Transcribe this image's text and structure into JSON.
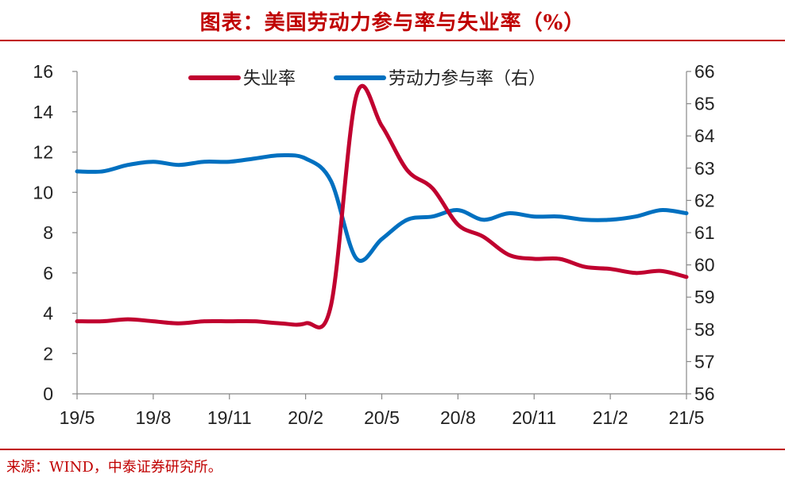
{
  "header": {
    "title": "图表：美国劳动力参与率与失业率（%）"
  },
  "footer": {
    "source": "来源：WIND，中泰证券研究所。"
  },
  "colors": {
    "brand": "#c00000",
    "unemployment": "#c0002f",
    "participation": "#0070c0"
  },
  "chart_data": {
    "type": "line",
    "title": "图表：美国劳动力参与率与失业率（%）",
    "x": [
      "19/5",
      "19/6",
      "19/7",
      "19/8",
      "19/9",
      "19/10",
      "19/11",
      "19/12",
      "20/1",
      "20/2",
      "20/3",
      "20/4",
      "20/5",
      "20/6",
      "20/7",
      "20/8",
      "20/9",
      "20/10",
      "20/11",
      "20/12",
      "21/1",
      "21/2",
      "21/3",
      "21/4",
      "21/5"
    ],
    "x_ticks": [
      "19/5",
      "19/8",
      "19/11",
      "20/2",
      "20/5",
      "20/8",
      "20/11",
      "21/2",
      "21/5"
    ],
    "y_left": {
      "ticks": [
        "0",
        "2",
        "4",
        "6",
        "8",
        "10",
        "12",
        "14",
        "16"
      ],
      "ylim": [
        0,
        16
      ]
    },
    "y_right": {
      "ticks": [
        "56",
        "57",
        "58",
        "59",
        "60",
        "61",
        "62",
        "63",
        "64",
        "65",
        "66"
      ],
      "ylim": [
        56,
        66
      ]
    },
    "series": [
      {
        "name": "失业率",
        "axis": "left",
        "values": [
          3.6,
          3.6,
          3.7,
          3.6,
          3.5,
          3.6,
          3.6,
          3.6,
          3.5,
          3.5,
          4.4,
          14.8,
          13.3,
          11.1,
          10.2,
          8.4,
          7.8,
          6.9,
          6.7,
          6.7,
          6.3,
          6.2,
          6.0,
          6.1,
          5.8
        ]
      },
      {
        "name": "劳动力参与率（右）",
        "axis": "right",
        "values": [
          62.9,
          62.9,
          63.1,
          63.2,
          63.1,
          63.2,
          63.2,
          63.3,
          63.4,
          63.3,
          62.6,
          60.2,
          60.8,
          61.4,
          61.5,
          61.7,
          61.4,
          61.6,
          61.5,
          61.5,
          61.4,
          61.4,
          61.5,
          61.7,
          61.6
        ]
      }
    ],
    "legend": {
      "position": "top-center",
      "entries": [
        "失业率",
        "劳动力参与率（右）"
      ]
    }
  }
}
